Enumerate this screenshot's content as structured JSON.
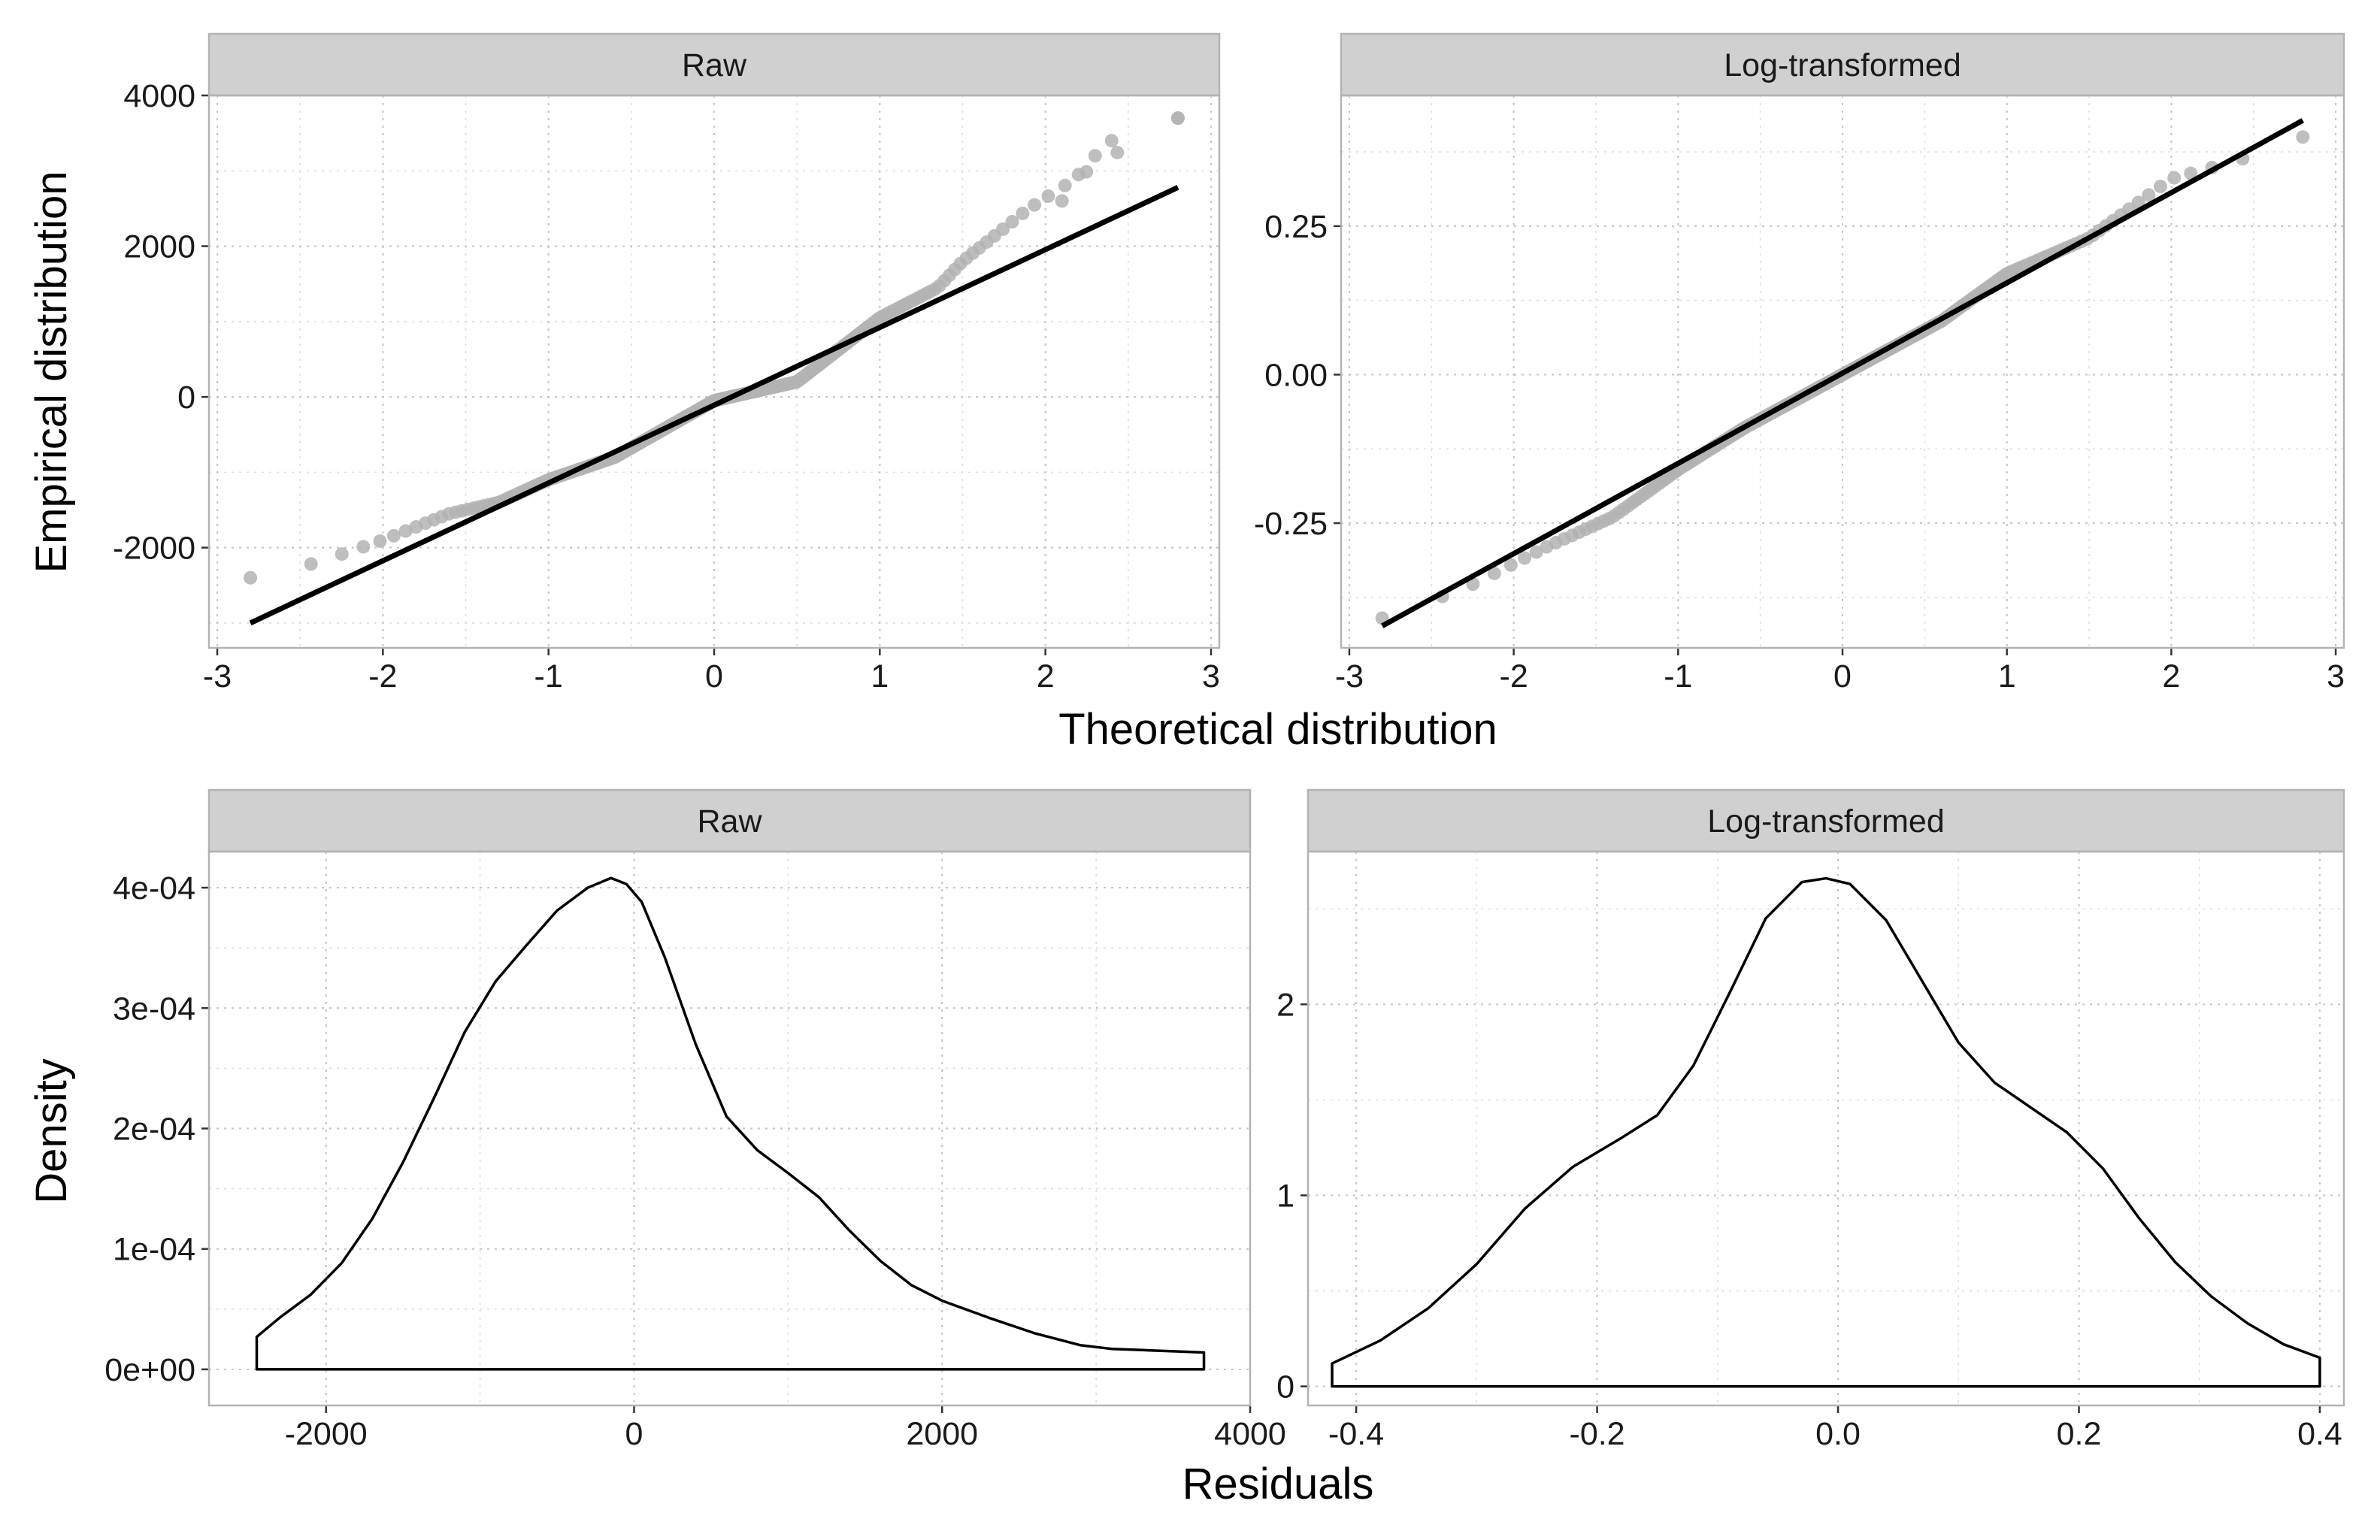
{
  "figure": {
    "top_xlabel": "Theoretical distribution",
    "top_ylabel": "Empirical distribution",
    "bottom_xlabel": "Residuals",
    "bottom_ylabel": "Density"
  },
  "chart_data": [
    {
      "type": "scatter",
      "panel": "Raw",
      "title": "Raw",
      "xlabel": "Theoretical distribution",
      "ylabel": "Empirical distribution",
      "xlim": [
        -3.05,
        3.05
      ],
      "ylim": [
        -3330,
        4000
      ],
      "xticks": [
        -3,
        -2,
        -1,
        0,
        1,
        2,
        3
      ],
      "xtick_labels": [
        "-3",
        "-2",
        "-1",
        "0",
        "1",
        "2",
        "3"
      ],
      "yticks": [
        -2000,
        0,
        2000,
        4000
      ],
      "ytick_labels": [
        "-2000",
        "0",
        "2000",
        "4000"
      ],
      "grid": true,
      "points": {
        "color": "#b3b3b3",
        "x_range": [
          -2.8,
          2.8
        ],
        "y_anchor_x": [
          -2.8,
          -2.4,
          -2.0,
          -1.6,
          -1.3,
          -1.0,
          -0.6,
          0.0,
          0.5,
          1.0,
          1.35,
          1.5,
          1.9,
          2.4,
          2.8
        ],
        "y_anchor_y": [
          -2400,
          -2200,
          -1900,
          -1550,
          -1400,
          -1100,
          -800,
          -50,
          200,
          1050,
          1450,
          1800,
          2500,
          3200,
          3700
        ],
        "top_points": [
          [
            2.1,
            2600
          ],
          [
            2.2,
            2950
          ],
          [
            2.3,
            3200
          ],
          [
            2.4,
            3400
          ],
          [
            2.8,
            3700
          ]
        ]
      },
      "reference_line": {
        "x": [
          -2.8,
          2.8
        ],
        "y": [
          -3000,
          2780
        ],
        "color": "#000000"
      }
    },
    {
      "type": "scatter",
      "panel": "Log-transformed",
      "title": "Log-transformed",
      "xlabel": "Theoretical distribution",
      "ylabel": "Empirical distribution",
      "xlim": [
        -3.05,
        3.05
      ],
      "ylim": [
        -0.46,
        0.47
      ],
      "xticks": [
        -3,
        -2,
        -1,
        0,
        1,
        2,
        3
      ],
      "xtick_labels": [
        "-3",
        "-2",
        "-1",
        "0",
        "1",
        "2",
        "3"
      ],
      "yticks": [
        -0.25,
        0.0,
        0.25
      ],
      "ytick_labels": [
        "-0.25",
        "0.00",
        "0.25"
      ],
      "grid": true,
      "points": {
        "color": "#b3b3b3",
        "x_range": [
          -2.8,
          2.8
        ],
        "y_anchor_x": [
          -2.8,
          -2.3,
          -1.8,
          -1.4,
          -1.0,
          -0.6,
          0.0,
          0.6,
          1.0,
          1.5,
          2.0,
          2.4,
          2.8
        ],
        "y_anchor_y": [
          -0.41,
          -0.36,
          -0.29,
          -0.24,
          -0.16,
          -0.09,
          0.0,
          0.09,
          0.17,
          0.23,
          0.33,
          0.36,
          0.4
        ]
      },
      "reference_line": {
        "x": [
          -2.8,
          2.8
        ],
        "y": [
          -0.423,
          0.428
        ],
        "color": "#000000"
      }
    },
    {
      "type": "area",
      "panel": "Raw",
      "title": "Raw",
      "xlabel": "Residuals",
      "ylabel": "Density",
      "xlim": [
        -2760,
        4000
      ],
      "ylim": [
        -3e-05,
        0.00043
      ],
      "xticks": [
        -2000,
        0,
        2000,
        4000
      ],
      "xtick_labels": [
        "-2000",
        "0",
        "2000",
        "4000"
      ],
      "yticks": [
        0,
        0.0001,
        0.0002,
        0.0003,
        0.0004
      ],
      "ytick_labels": [
        "0e+00",
        "1e-04",
        "2e-04",
        "3e-04",
        "4e-04"
      ],
      "grid": true,
      "density": {
        "x": [
          -2450,
          -2300,
          -2100,
          -1900,
          -1700,
          -1500,
          -1300,
          -1100,
          -900,
          -700,
          -500,
          -300,
          -150,
          -50,
          50,
          200,
          400,
          600,
          800,
          1000,
          1200,
          1400,
          1600,
          1800,
          2000,
          2300,
          2600,
          2900,
          3100,
          3300,
          3500,
          3700
        ],
        "y": [
          2.7e-05,
          4.3e-05,
          6.2e-05,
          8.8e-05,
          0.000125,
          0.000172,
          0.000225,
          0.00028,
          0.000322,
          0.000352,
          0.000381,
          0.0004,
          0.000408,
          0.000403,
          0.000388,
          0.000342,
          0.00027,
          0.00021,
          0.000182,
          0.000163,
          0.000143,
          0.000115,
          9e-05,
          7e-05,
          5.7e-05,
          4.3e-05,
          3e-05,
          2e-05,
          1.7e-05,
          1.6e-05,
          1.5e-05,
          1.4e-05
        ]
      }
    },
    {
      "type": "area",
      "panel": "Log-transformed",
      "title": "Log-transformed",
      "xlabel": "Residuals",
      "ylabel": "Density",
      "xlim": [
        -0.44,
        0.42
      ],
      "ylim": [
        -0.1,
        2.8
      ],
      "xticks": [
        -0.4,
        -0.2,
        0.0,
        0.2,
        0.4
      ],
      "xtick_labels": [
        "-0.4",
        "-0.2",
        "0.0",
        "0.2",
        "0.4"
      ],
      "yticks": [
        0,
        1,
        2
      ],
      "ytick_labels": [
        "0",
        "1",
        "2"
      ],
      "grid": true,
      "density": {
        "x": [
          -0.42,
          -0.38,
          -0.34,
          -0.3,
          -0.26,
          -0.22,
          -0.18,
          -0.15,
          -0.12,
          -0.09,
          -0.06,
          -0.03,
          -0.01,
          0.01,
          0.04,
          0.07,
          0.1,
          0.13,
          0.16,
          0.19,
          0.22,
          0.25,
          0.28,
          0.31,
          0.34,
          0.37,
          0.4
        ],
        "y": [
          0.12,
          0.24,
          0.41,
          0.64,
          0.93,
          1.15,
          1.3,
          1.42,
          1.68,
          2.06,
          2.45,
          2.64,
          2.66,
          2.63,
          2.44,
          2.12,
          1.8,
          1.59,
          1.46,
          1.33,
          1.14,
          0.88,
          0.65,
          0.47,
          0.33,
          0.22,
          0.15
        ]
      }
    }
  ]
}
